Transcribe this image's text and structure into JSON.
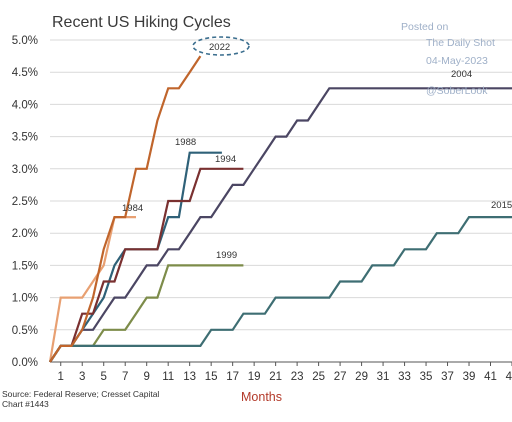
{
  "chart_data": {
    "type": "line",
    "title": "Recent US Hiking Cycles",
    "xlabel": "Months",
    "ylabel": "",
    "xlim": [
      0,
      43
    ],
    "ylim": [
      0,
      5
    ],
    "yticks": [
      "0.0%",
      "0.5%",
      "1.0%",
      "1.5%",
      "2.0%",
      "2.5%",
      "3.0%",
      "3.5%",
      "4.0%",
      "4.5%",
      "5.0%"
    ],
    "xticks": [
      "1",
      "3",
      "5",
      "7",
      "9",
      "11",
      "13",
      "15",
      "17",
      "19",
      "21",
      "23",
      "25",
      "27",
      "29",
      "31",
      "33",
      "35",
      "37",
      "39",
      "41",
      "43"
    ],
    "grid": "horizontal",
    "series": [
      {
        "name": "1984",
        "color": "#e8a072",
        "x": [
          0,
          1,
          2,
          3,
          4,
          5,
          6,
          7,
          8
        ],
        "y": [
          0,
          1.0,
          1.0,
          1.0,
          1.25,
          1.5,
          2.25,
          2.25,
          2.25
        ]
      },
      {
        "name": "1988",
        "color": "#2f6178",
        "x": [
          0,
          1,
          2,
          3,
          4,
          5,
          6,
          7,
          8,
          9,
          10,
          11,
          12,
          13,
          14,
          15,
          16
        ],
        "y": [
          0,
          0.25,
          0.25,
          0.5,
          0.75,
          1.0,
          1.5,
          1.75,
          1.75,
          1.75,
          1.75,
          2.25,
          2.25,
          3.25,
          3.25,
          3.25,
          3.25
        ]
      },
      {
        "name": "1994",
        "color": "#7a3030",
        "x": [
          0,
          1,
          2,
          3,
          4,
          5,
          6,
          7,
          8,
          9,
          10,
          11,
          12,
          13,
          14,
          15,
          16,
          17,
          18
        ],
        "y": [
          0,
          0.25,
          0.25,
          0.75,
          0.75,
          1.25,
          1.25,
          1.75,
          1.75,
          1.75,
          1.75,
          2.5,
          2.5,
          2.5,
          3.0,
          3.0,
          3.0,
          3.0,
          3.0
        ]
      },
      {
        "name": "1999",
        "color": "#7d8c4a",
        "x": [
          0,
          1,
          2,
          3,
          4,
          5,
          6,
          7,
          8,
          9,
          10,
          11,
          12,
          13,
          14,
          15,
          16,
          17,
          18
        ],
        "y": [
          0,
          0.25,
          0.25,
          0.25,
          0.25,
          0.5,
          0.5,
          0.5,
          0.75,
          1.0,
          1.0,
          1.5,
          1.5,
          1.5,
          1.5,
          1.5,
          1.5,
          1.5,
          1.5
        ]
      },
      {
        "name": "2004",
        "color": "#4b4663",
        "x": [
          0,
          1,
          2,
          3,
          4,
          5,
          6,
          7,
          8,
          9,
          10,
          11,
          12,
          13,
          14,
          15,
          16,
          17,
          18,
          19,
          20,
          21,
          22,
          23,
          24,
          25,
          26,
          27,
          28,
          29,
          30,
          31,
          32,
          33,
          34,
          35,
          36,
          37,
          38,
          39,
          40,
          41,
          42,
          43
        ],
        "y": [
          0,
          0.25,
          0.25,
          0.5,
          0.5,
          0.75,
          1.0,
          1.0,
          1.25,
          1.5,
          1.5,
          1.75,
          1.75,
          2.0,
          2.25,
          2.25,
          2.5,
          2.75,
          2.75,
          3.0,
          3.25,
          3.5,
          3.5,
          3.75,
          3.75,
          4.0,
          4.25,
          4.25,
          4.25,
          4.25,
          4.25,
          4.25,
          4.25,
          4.25,
          4.25,
          4.25,
          4.25,
          4.25,
          4.25,
          4.25,
          4.25,
          4.25,
          4.25,
          4.25
        ]
      },
      {
        "name": "2015",
        "color": "#3e6e73",
        "x": [
          0,
          1,
          2,
          3,
          4,
          5,
          6,
          7,
          8,
          9,
          10,
          11,
          12,
          13,
          14,
          15,
          16,
          17,
          18,
          19,
          20,
          21,
          22,
          23,
          24,
          25,
          26,
          27,
          28,
          29,
          30,
          31,
          32,
          33,
          34,
          35,
          36,
          37,
          38,
          39,
          40,
          41,
          42,
          43
        ],
        "y": [
          0,
          0.25,
          0.25,
          0.25,
          0.25,
          0.25,
          0.25,
          0.25,
          0.25,
          0.25,
          0.25,
          0.25,
          0.25,
          0.25,
          0.25,
          0.5,
          0.5,
          0.5,
          0.75,
          0.75,
          0.75,
          1.0,
          1.0,
          1.0,
          1.0,
          1.0,
          1.0,
          1.25,
          1.25,
          1.25,
          1.5,
          1.5,
          1.5,
          1.75,
          1.75,
          1.75,
          2.0,
          2.0,
          2.0,
          2.25,
          2.25,
          2.25,
          2.25,
          2.25
        ]
      },
      {
        "name": "2022",
        "color": "#c0652c",
        "x": [
          0,
          1,
          2,
          3,
          4,
          5,
          6,
          7,
          8,
          9,
          10,
          11,
          12,
          13,
          14
        ],
        "y": [
          0,
          0.25,
          0.25,
          0.5,
          1.0,
          1.75,
          2.25,
          2.25,
          3.0,
          3.0,
          3.75,
          4.25,
          4.25,
          4.5,
          4.75
        ]
      }
    ],
    "label_2015": "2015"
  },
  "source": "Source: Federal Reserve; Cresset Capital",
  "chart_number": "Chart #1443",
  "watermark": {
    "line1": "Posted on",
    "line2": "The Daily Shot",
    "line3": "04-May-2023",
    "line4": "@SoberLook"
  },
  "colors": {
    "grid": "#d9d9d9",
    "axis": "#555555",
    "highlight_ellipse": "#3c6f8f"
  }
}
